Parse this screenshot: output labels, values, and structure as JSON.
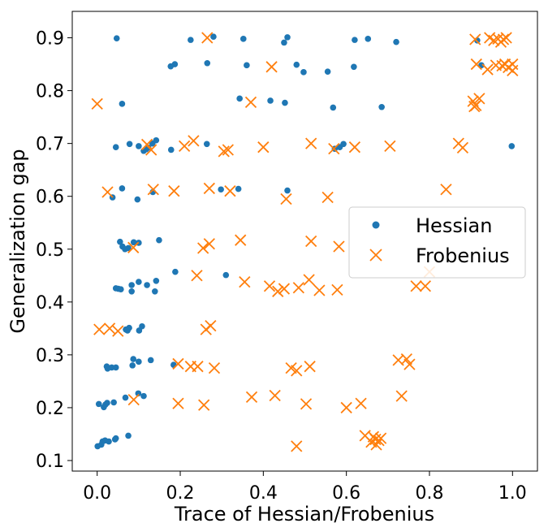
{
  "chart_data": {
    "type": "scatter",
    "title": "",
    "xlabel": "Trace of Hessian/Frobenius",
    "ylabel": "Generalization gap",
    "xlim": [
      -0.06,
      1.06
    ],
    "ylim": [
      0.08,
      0.95
    ],
    "xticks": [
      "0.0",
      "0.2",
      "0.4",
      "0.6",
      "0.8",
      "1.0"
    ],
    "yticks": [
      "0.1",
      "0.2",
      "0.3",
      "0.4",
      "0.5",
      "0.6",
      "0.7",
      "0.8",
      "0.9"
    ],
    "grid": false,
    "legend_position": "center-right",
    "series": [
      {
        "name": "Hessian",
        "marker": "circle",
        "color": "#1f77b4",
        "points": [
          [
            0.047,
            0.899
          ],
          [
            0.225,
            0.896
          ],
          [
            0.28,
            0.902
          ],
          [
            0.352,
            0.898
          ],
          [
            0.45,
            0.891
          ],
          [
            0.458,
            0.901
          ],
          [
            0.62,
            0.896
          ],
          [
            0.652,
            0.898
          ],
          [
            0.72,
            0.892
          ],
          [
            0.915,
            0.895
          ],
          [
            0.177,
            0.846
          ],
          [
            0.187,
            0.85
          ],
          [
            0.265,
            0.852
          ],
          [
            0.36,
            0.848
          ],
          [
            0.48,
            0.849
          ],
          [
            0.497,
            0.835
          ],
          [
            0.555,
            0.836
          ],
          [
            0.618,
            0.845
          ],
          [
            0.925,
            0.848
          ],
          [
            0.06,
            0.775
          ],
          [
            0.343,
            0.785
          ],
          [
            0.417,
            0.781
          ],
          [
            0.452,
            0.777
          ],
          [
            0.568,
            0.768
          ],
          [
            0.685,
            0.769
          ],
          [
            0.045,
            0.693
          ],
          [
            0.078,
            0.699
          ],
          [
            0.1,
            0.695
          ],
          [
            0.112,
            0.686
          ],
          [
            0.118,
            0.689
          ],
          [
            0.123,
            0.692
          ],
          [
            0.133,
            0.7
          ],
          [
            0.142,
            0.706
          ],
          [
            0.178,
            0.688
          ],
          [
            0.264,
            0.699
          ],
          [
            0.572,
            0.69
          ],
          [
            0.584,
            0.693
          ],
          [
            0.593,
            0.699
          ],
          [
            0.998,
            0.695
          ],
          [
            0.037,
            0.598
          ],
          [
            0.06,
            0.615
          ],
          [
            0.097,
            0.594
          ],
          [
            0.134,
            0.608
          ],
          [
            0.298,
            0.613
          ],
          [
            0.34,
            0.614
          ],
          [
            0.458,
            0.611
          ],
          [
            0.055,
            0.514
          ],
          [
            0.061,
            0.505
          ],
          [
            0.067,
            0.5
          ],
          [
            0.075,
            0.502
          ],
          [
            0.088,
            0.513
          ],
          [
            0.1,
            0.512
          ],
          [
            0.149,
            0.517
          ],
          [
            0.188,
            0.457
          ],
          [
            0.31,
            0.451
          ],
          [
            0.045,
            0.426
          ],
          [
            0.051,
            0.425
          ],
          [
            0.057,
            0.424
          ],
          [
            0.083,
            0.42
          ],
          [
            0.083,
            0.432
          ],
          [
            0.1,
            0.438
          ],
          [
            0.12,
            0.432
          ],
          [
            0.139,
            0.42
          ],
          [
            0.142,
            0.44
          ],
          [
            0.069,
            0.348
          ],
          [
            0.073,
            0.346
          ],
          [
            0.077,
            0.351
          ],
          [
            0.101,
            0.346
          ],
          [
            0.108,
            0.354
          ],
          [
            0.023,
            0.278
          ],
          [
            0.025,
            0.274
          ],
          [
            0.035,
            0.276
          ],
          [
            0.045,
            0.276
          ],
          [
            0.085,
            0.28
          ],
          [
            0.087,
            0.292
          ],
          [
            0.1,
            0.287
          ],
          [
            0.129,
            0.29
          ],
          [
            0.184,
            0.281
          ],
          [
            0.004,
            0.207
          ],
          [
            0.016,
            0.201
          ],
          [
            0.02,
            0.206
          ],
          [
            0.024,
            0.209
          ],
          [
            0.04,
            0.21
          ],
          [
            0.068,
            0.219
          ],
          [
            0.099,
            0.227
          ],
          [
            0.112,
            0.222
          ],
          [
            0.001,
            0.127
          ],
          [
            0.01,
            0.13
          ],
          [
            0.013,
            0.136
          ],
          [
            0.019,
            0.138
          ],
          [
            0.028,
            0.136
          ],
          [
            0.043,
            0.14
          ],
          [
            0.045,
            0.142
          ],
          [
            0.075,
            0.147
          ]
        ]
      },
      {
        "name": "Frobenius",
        "marker": "x",
        "color": "#ff7f0e",
        "points": [
          [
            0.265,
            0.9
          ],
          [
            0.91,
            0.897
          ],
          [
            0.945,
            0.9
          ],
          [
            0.955,
            0.895
          ],
          [
            0.972,
            0.892
          ],
          [
            0.978,
            0.897
          ],
          [
            0.985,
            0.9
          ],
          [
            0.965,
            0.898
          ],
          [
            0.42,
            0.845
          ],
          [
            0.913,
            0.85
          ],
          [
            0.94,
            0.84
          ],
          [
            0.96,
            0.848
          ],
          [
            0.975,
            0.847
          ],
          [
            0.982,
            0.85
          ],
          [
            0.99,
            0.844
          ],
          [
            1.0,
            0.85
          ],
          [
            1.0,
            0.838
          ],
          [
            0.0,
            0.775
          ],
          [
            0.37,
            0.778
          ],
          [
            0.905,
            0.78
          ],
          [
            0.912,
            0.772
          ],
          [
            0.92,
            0.785
          ],
          [
            0.908,
            0.77
          ],
          [
            0.12,
            0.698
          ],
          [
            0.13,
            0.688
          ],
          [
            0.21,
            0.695
          ],
          [
            0.232,
            0.705
          ],
          [
            0.305,
            0.685
          ],
          [
            0.315,
            0.688
          ],
          [
            0.4,
            0.693
          ],
          [
            0.515,
            0.7
          ],
          [
            0.57,
            0.69
          ],
          [
            0.62,
            0.693
          ],
          [
            0.705,
            0.695
          ],
          [
            0.87,
            0.7
          ],
          [
            0.88,
            0.692
          ],
          [
            0.025,
            0.608
          ],
          [
            0.135,
            0.613
          ],
          [
            0.185,
            0.61
          ],
          [
            0.27,
            0.615
          ],
          [
            0.32,
            0.61
          ],
          [
            0.455,
            0.595
          ],
          [
            0.555,
            0.598
          ],
          [
            0.84,
            0.613
          ],
          [
            0.087,
            0.503
          ],
          [
            0.255,
            0.502
          ],
          [
            0.27,
            0.51
          ],
          [
            0.345,
            0.517
          ],
          [
            0.515,
            0.515
          ],
          [
            0.582,
            0.505
          ],
          [
            0.24,
            0.45
          ],
          [
            0.355,
            0.438
          ],
          [
            0.415,
            0.43
          ],
          [
            0.435,
            0.42
          ],
          [
            0.45,
            0.425
          ],
          [
            0.485,
            0.427
          ],
          [
            0.51,
            0.442
          ],
          [
            0.535,
            0.422
          ],
          [
            0.578,
            0.423
          ],
          [
            0.768,
            0.43
          ],
          [
            0.79,
            0.43
          ],
          [
            0.8,
            0.457
          ],
          [
            0.005,
            0.348
          ],
          [
            0.03,
            0.35
          ],
          [
            0.05,
            0.345
          ],
          [
            0.262,
            0.348
          ],
          [
            0.273,
            0.355
          ],
          [
            0.195,
            0.283
          ],
          [
            0.225,
            0.278
          ],
          [
            0.242,
            0.278
          ],
          [
            0.282,
            0.275
          ],
          [
            0.467,
            0.275
          ],
          [
            0.48,
            0.27
          ],
          [
            0.512,
            0.278
          ],
          [
            0.725,
            0.29
          ],
          [
            0.745,
            0.292
          ],
          [
            0.752,
            0.282
          ],
          [
            0.088,
            0.215
          ],
          [
            0.195,
            0.208
          ],
          [
            0.257,
            0.205
          ],
          [
            0.372,
            0.22
          ],
          [
            0.428,
            0.223
          ],
          [
            0.503,
            0.207
          ],
          [
            0.6,
            0.2
          ],
          [
            0.635,
            0.208
          ],
          [
            0.733,
            0.222
          ],
          [
            0.48,
            0.127
          ],
          [
            0.645,
            0.147
          ],
          [
            0.66,
            0.135
          ],
          [
            0.67,
            0.14
          ],
          [
            0.672,
            0.13
          ],
          [
            0.678,
            0.138
          ],
          [
            0.683,
            0.142
          ],
          [
            0.665,
            0.145
          ]
        ]
      }
    ]
  }
}
